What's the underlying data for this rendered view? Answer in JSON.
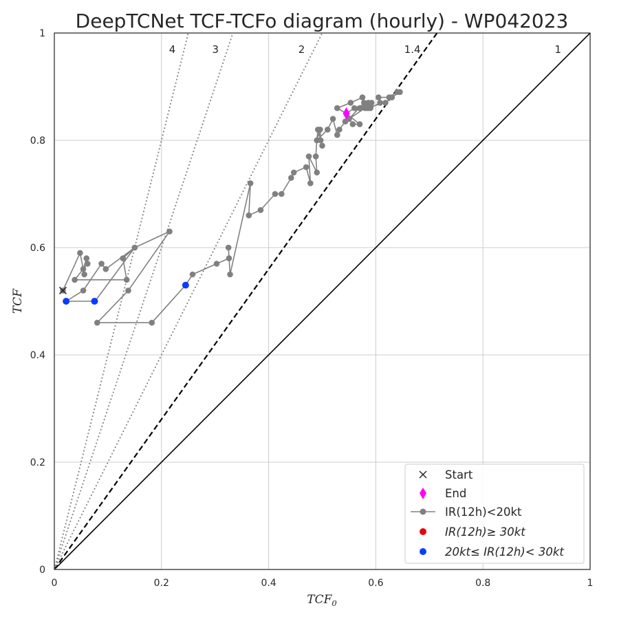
{
  "chart_data": {
    "type": "scatter",
    "title": "DeepTCNet TCF-TCFo diagram (hourly) - WP042023",
    "xlabel": "TCF",
    "xlabel_sub": "0",
    "ylabel": "TCF",
    "xlim": [
      0,
      1
    ],
    "ylim": [
      0,
      1
    ],
    "xticks": [
      "0",
      "0.2",
      "0.4",
      "0.6",
      "0.8",
      "1"
    ],
    "yticks": [
      "0",
      "0.2",
      "0.4",
      "0.6",
      "0.8",
      "1"
    ],
    "grid": true,
    "legend_position": "lower-right",
    "reference_lines": [
      {
        "label": "1",
        "slope": 1,
        "style": "solid"
      },
      {
        "label": "1.4",
        "slope": 1.4,
        "style": "dashed"
      },
      {
        "label": "2",
        "slope": 2,
        "style": "dotted"
      },
      {
        "label": "3",
        "slope": 3,
        "style": "dotted"
      },
      {
        "label": "4",
        "slope": 4,
        "style": "dotted"
      }
    ],
    "track": {
      "x": [
        0.016,
        0.048,
        0.056,
        0.054,
        0.06,
        0.062,
        0.038,
        0.135,
        0.128,
        0.15,
        0.076,
        0.022,
        0.054,
        0.088,
        0.096,
        0.15,
        0.215,
        0.138,
        0.08,
        0.182,
        0.245,
        0.258,
        0.303,
        0.326,
        0.325,
        0.328,
        0.366,
        0.363,
        0.385,
        0.412,
        0.424,
        0.442,
        0.447,
        0.47,
        0.478,
        0.475,
        0.49,
        0.488,
        0.49,
        0.492,
        0.5,
        0.497,
        0.496,
        0.49,
        0.51,
        0.52,
        0.528,
        0.532,
        0.543,
        0.55,
        0.557,
        0.57,
        0.545,
        0.528,
        0.553,
        0.575,
        0.585,
        0.59,
        0.608,
        0.605,
        0.625,
        0.64,
        0.645,
        0.63,
        0.618,
        0.58,
        0.55,
        0.578,
        0.592,
        0.57,
        0.586,
        0.56,
        0.545
      ],
      "y": [
        0.52,
        0.59,
        0.55,
        0.56,
        0.58,
        0.57,
        0.54,
        0.54,
        0.58,
        0.6,
        0.5,
        0.5,
        0.52,
        0.57,
        0.56,
        0.6,
        0.63,
        0.52,
        0.46,
        0.46,
        0.53,
        0.55,
        0.57,
        0.58,
        0.6,
        0.55,
        0.72,
        0.66,
        0.67,
        0.7,
        0.7,
        0.73,
        0.74,
        0.75,
        0.72,
        0.77,
        0.74,
        0.77,
        0.8,
        0.82,
        0.79,
        0.8,
        0.82,
        0.8,
        0.82,
        0.84,
        0.81,
        0.82,
        0.835,
        0.84,
        0.83,
        0.83,
        0.85,
        0.86,
        0.87,
        0.88,
        0.86,
        0.86,
        0.87,
        0.88,
        0.88,
        0.89,
        0.89,
        0.88,
        0.87,
        0.86,
        0.84,
        0.87,
        0.87,
        0.86,
        0.87,
        0.86,
        0.85
      ]
    },
    "blue_points": [
      {
        "x": 0.022,
        "y": 0.5
      },
      {
        "x": 0.075,
        "y": 0.5
      },
      {
        "x": 0.245,
        "y": 0.53
      }
    ],
    "start": {
      "x": 0.016,
      "y": 0.52
    },
    "end": {
      "x": 0.545,
      "y": 0.85
    },
    "legend": [
      {
        "label": "Start",
        "marker": "x"
      },
      {
        "label": "End",
        "marker": "diamond"
      },
      {
        "label": "IR(12h)<20kt",
        "marker": "line-dot"
      },
      {
        "label": "IR(12h)≥ 30kt",
        "marker": "red-dot"
      },
      {
        "label": "20kt≤ IR(12h)< 30kt",
        "marker": "blue-dot"
      }
    ]
  },
  "colors": {
    "track": "#808080",
    "blue": "#0a3cff",
    "red": "#e8000b",
    "end": "#ff00ff",
    "start": "#262626",
    "grid": "#cccccc",
    "axis": "#262626",
    "ref_dotted": "#808080"
  }
}
